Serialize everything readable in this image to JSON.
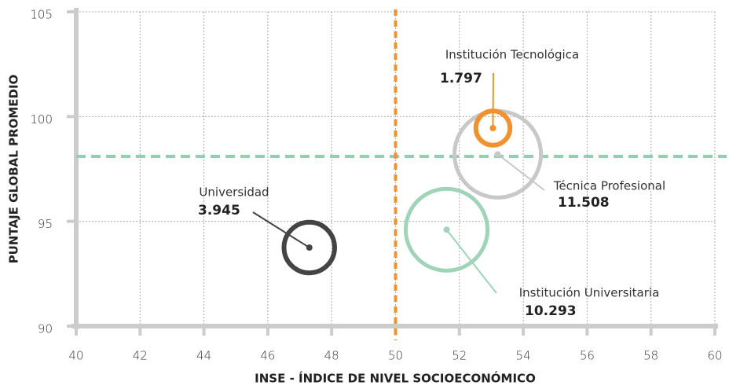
{
  "chart_data": {
    "type": "bubble",
    "x_label": "INSE - ÍNDICE DE NIVEL SOCIOECONÓMICO",
    "y_label": "PUNTAJE GLOBAL PROMEDIO",
    "xlim": [
      40,
      60
    ],
    "xticks": [
      40,
      42,
      44,
      46,
      48,
      50,
      52,
      54,
      56,
      58,
      60
    ],
    "ylim": [
      90,
      105
    ],
    "yticks": [
      90,
      95,
      100,
      105
    ],
    "grid": true,
    "vlines": [
      {
        "value": 50,
        "color": "#f0922f"
      }
    ],
    "hlines": [
      {
        "value": 98.1,
        "color": "#8fd0b0"
      }
    ],
    "series": [
      {
        "name": "Universidad",
        "color": "#444444",
        "x": [
          47.3
        ],
        "values": [
          93.75
        ],
        "sizes": [
          3945
        ],
        "size_labels": [
          "3.945"
        ]
      },
      {
        "name": "Institución Universitaria",
        "color": "#9fd4b8",
        "x": [
          51.6
        ],
        "values": [
          94.6
        ],
        "sizes": [
          10293
        ],
        "size_labels": [
          "10.293"
        ]
      },
      {
        "name": "Técnica Profesional",
        "color": "#c8c8c8",
        "x": [
          53.2
        ],
        "values": [
          98.2
        ],
        "sizes": [
          11508
        ],
        "size_labels": [
          "11.508"
        ]
      },
      {
        "name": "Institución Tecnológica",
        "color": "#f0922f",
        "x": [
          53.05
        ],
        "values": [
          99.45
        ],
        "sizes": [
          1797
        ],
        "size_labels": [
          "1.797"
        ]
      }
    ]
  }
}
